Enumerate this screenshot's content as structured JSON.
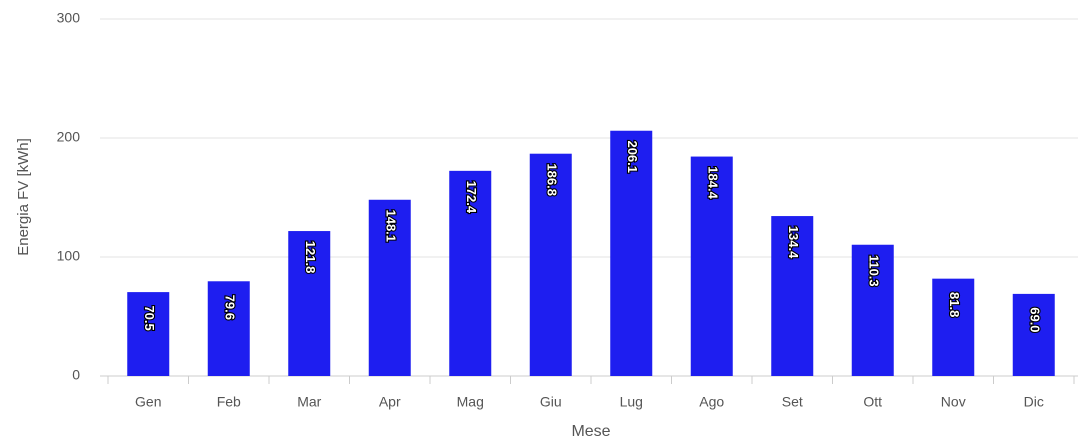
{
  "chart_data": {
    "type": "bar",
    "x_label": "Mese",
    "y_label": "Energia FV [kWh]",
    "categories": [
      "Gen",
      "Feb",
      "Mar",
      "Apr",
      "Mag",
      "Giu",
      "Lug",
      "Ago",
      "Set",
      "Ott",
      "Nov",
      "Dic"
    ],
    "values": [
      70.5,
      79.6,
      121.8,
      148.1,
      172.4,
      186.8,
      206.1,
      184.4,
      134.4,
      110.3,
      81.8,
      69
    ],
    "value_labels": [
      "70.5",
      "79.6",
      "121.8",
      "148.1",
      "172.4",
      "186.8",
      "206.1",
      "184.4",
      "134.4",
      "110.3",
      "81.8",
      "69.0"
    ],
    "color": "#1e1ef0",
    "ylim": [
      0,
      300
    ],
    "yticks": [
      0,
      100,
      200,
      300
    ],
    "grid": true
  }
}
